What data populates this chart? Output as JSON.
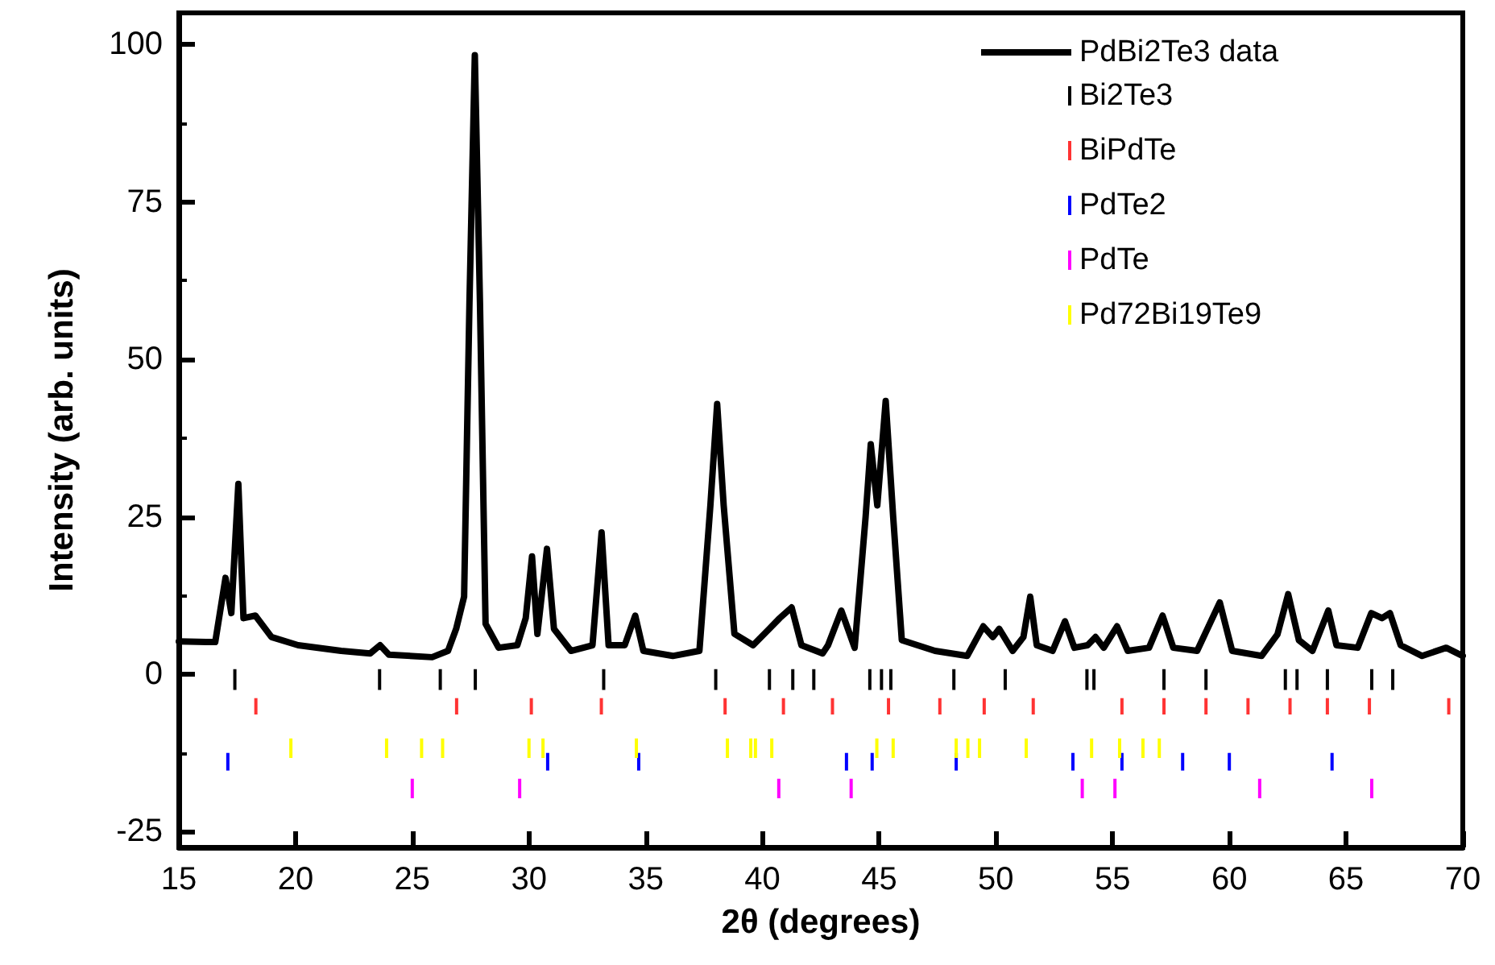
{
  "chart_data": {
    "type": "line",
    "xlabel": "2θ (degrees)",
    "ylabel": "Intensity (arb. units)",
    "xlim": [
      15,
      70
    ],
    "xticks": [
      15,
      20,
      25,
      30,
      35,
      40,
      45,
      50,
      55,
      60,
      65,
      70
    ],
    "ylim": [
      -27.5,
      105
    ],
    "yticks": [
      -25,
      {
        "value": -12.5,
        "label": null
      },
      0,
      {
        "value": 12.5,
        "label": null
      },
      25,
      {
        "value": 37.5,
        "label": null
      },
      50,
      {
        "value": 62.5,
        "label": null
      },
      75,
      {
        "value": 87.5,
        "label": null
      },
      100
    ],
    "grid": false,
    "legend": "top right",
    "series": [
      {
        "name": "PdBi2Te3 data",
        "type": "line",
        "color": "#000000",
        "marker": "none",
        "line_style": "solid",
        "x": [
          15,
          16.56,
          17.0,
          17.25,
          17.55,
          17.77,
          18.28,
          18.97,
          20.11,
          21.95,
          23.2,
          23.62,
          24.0,
          25.85,
          26.53,
          26.88,
          27.22,
          27.45,
          27.68,
          27.9,
          28.14,
          28.7,
          29.5,
          29.86,
          30.13,
          30.36,
          30.77,
          31.07,
          31.8,
          32.72,
          33.11,
          33.41,
          34.1,
          34.55,
          34.9,
          36.16,
          37.3,
          37.77,
          38.06,
          38.34,
          38.8,
          39.6,
          40.29,
          40.74,
          41.25,
          41.67,
          42.58,
          42.81,
          43.38,
          43.95,
          44.42,
          44.64,
          44.92,
          45.28,
          45.6,
          45.97,
          47.39,
          48.77,
          49.46,
          49.87,
          50.14,
          50.72,
          51.18,
          51.47,
          51.75,
          52.43,
          52.96,
          53.36,
          53.93,
          54.27,
          54.62,
          55.19,
          55.65,
          56.56,
          57.14,
          57.6,
          58.62,
          59.59,
          60.12,
          61.38,
          62.06,
          62.52,
          62.98,
          63.56,
          64.24,
          64.59,
          65.5,
          66.08,
          66.54,
          66.88,
          67.34,
          68.26,
          69.29,
          70
        ],
        "values": [
          5.2,
          5.1,
          15.3,
          9.7,
          30.2,
          8.9,
          9.3,
          5.9,
          4.6,
          3.7,
          3.3,
          4.6,
          3.1,
          2.7,
          3.7,
          7.2,
          12.3,
          59,
          98.3,
          59,
          8,
          4.2,
          4.6,
          8.9,
          18.7,
          6.4,
          19.9,
          7.2,
          3.7,
          4.6,
          22.5,
          4.6,
          4.6,
          9.3,
          3.7,
          2.9,
          3.7,
          26.8,
          42.9,
          26.8,
          6.4,
          4.6,
          7.2,
          8.9,
          10.6,
          4.6,
          3.3,
          4.6,
          10.1,
          4.2,
          25,
          36.5,
          26.8,
          43.4,
          25,
          5.4,
          3.7,
          2.9,
          7.6,
          5.9,
          7.2,
          3.7,
          5.9,
          12.3,
          4.6,
          3.7,
          8.4,
          4.2,
          4.6,
          5.9,
          4.2,
          7.6,
          3.7,
          4.2,
          9.3,
          4.2,
          3.7,
          11.4,
          3.7,
          2.9,
          6.3,
          12.7,
          5.4,
          3.7,
          10.1,
          4.6,
          4.2,
          9.7,
          8.9,
          9.7,
          4.6,
          2.9,
          4.2,
          2.9
        ]
      },
      {
        "name": "Bi2Te3",
        "type": "bar",
        "color": "#000000",
        "x": [
          17.4,
          23.6,
          26.2,
          27.7,
          33.2,
          38.0,
          40.3,
          41.3,
          42.2,
          44.6,
          45.1,
          45.5,
          48.2,
          50.4,
          53.9,
          54.2,
          57.2,
          59.0,
          62.4,
          62.9,
          64.2,
          66.1,
          67.0
        ],
        "base": [
          -2.5,
          -2.5,
          -2.5,
          -2.5,
          -2.5,
          -2.5,
          -2.5,
          -2.5,
          -2.5,
          -2.5,
          -2.5,
          -2.5,
          -2.5,
          -2.5,
          -2.5,
          -2.5,
          -2.5,
          -2.5,
          -2.5,
          -2.5,
          -2.5,
          -2.5,
          -2.5
        ],
        "values": [
          3.3,
          3.3,
          3.3,
          3.3,
          3.3,
          3.3,
          3.3,
          3.3,
          3.3,
          3.3,
          3.3,
          3.3,
          3.3,
          3.3,
          3.3,
          3.3,
          3.3,
          3.3,
          3.3,
          3.3,
          3.3,
          3.3,
          3.3
        ]
      },
      {
        "name": "BiPdTe",
        "type": "bar",
        "color": "#ff3333",
        "x": [
          18.3,
          26.9,
          30.1,
          33.1,
          38.4,
          40.9,
          43.0,
          45.4,
          47.6,
          49.5,
          51.6,
          55.4,
          57.2,
          59.0,
          60.8,
          62.6,
          64.2,
          66.0,
          69.4
        ],
        "base": [
          -6.4,
          -6.4,
          -6.4,
          -6.4,
          -6.4,
          -6.4,
          -6.4,
          -6.4,
          -6.4,
          -6.4,
          -6.4,
          -6.4,
          -6.4,
          -6.4,
          -6.4,
          -6.4,
          -6.4,
          -6.4,
          -6.4
        ],
        "values": [
          2.6,
          2.6,
          2.6,
          2.6,
          2.6,
          2.6,
          2.6,
          2.6,
          2.6,
          2.6,
          2.6,
          2.6,
          2.6,
          2.6,
          2.6,
          2.6,
          2.6,
          2.6,
          2.6
        ]
      },
      {
        "name": "PdTe2",
        "type": "bar",
        "color": "#0000ff",
        "x": [
          17.1,
          30.8,
          34.7,
          43.6,
          44.7,
          48.3,
          53.3,
          55.4,
          58.0,
          60.0,
          64.4
        ],
        "base": [
          -15.3,
          -15.3,
          -15.3,
          -15.3,
          -15.3,
          -15.3,
          -15.3,
          -15.3,
          -15.3,
          -15.3,
          -15.3
        ],
        "values": [
          2.8,
          2.8,
          2.8,
          2.8,
          2.8,
          2.8,
          2.8,
          2.8,
          2.8,
          2.8,
          2.8
        ]
      },
      {
        "name": "PdTe",
        "type": "bar",
        "color": "#ff00ff",
        "x": [
          25.0,
          29.6,
          40.7,
          43.8,
          53.7,
          55.1,
          61.3,
          66.1
        ],
        "base": [
          -19.7,
          -19.7,
          -19.7,
          -19.7,
          -19.7,
          -19.7,
          -19.7,
          -19.7
        ],
        "values": [
          3.1,
          3.1,
          3.1,
          3.1,
          3.1,
          3.1,
          3.1,
          3.1
        ]
      },
      {
        "name": "Pd72Bi19Te9",
        "type": "bar",
        "color": "#ffff00",
        "x": [
          19.8,
          23.9,
          25.4,
          26.3,
          30.0,
          30.6,
          34.6,
          38.5,
          39.5,
          39.7,
          40.4,
          44.9,
          45.6,
          48.3,
          48.8,
          49.3,
          51.3,
          54.1,
          55.3,
          56.3,
          57.0
        ],
        "base": [
          -13.3,
          -13.3,
          -13.3,
          -13.3,
          -13.3,
          -13.3,
          -13.3,
          -13.3,
          -13.3,
          -13.3,
          -13.3,
          -13.3,
          -13.3,
          -13.3,
          -13.3,
          -13.3,
          -13.3,
          -13.3,
          -13.3,
          -13.3,
          -13.3
        ],
        "values": [
          3.1,
          3.1,
          3.1,
          3.1,
          3.1,
          3.1,
          3.1,
          3.1,
          3.1,
          3.1,
          3.1,
          3.1,
          3.1,
          3.1,
          3.1,
          3.1,
          3.1,
          3.1,
          3.1,
          3.1,
          3.1
        ]
      }
    ]
  }
}
